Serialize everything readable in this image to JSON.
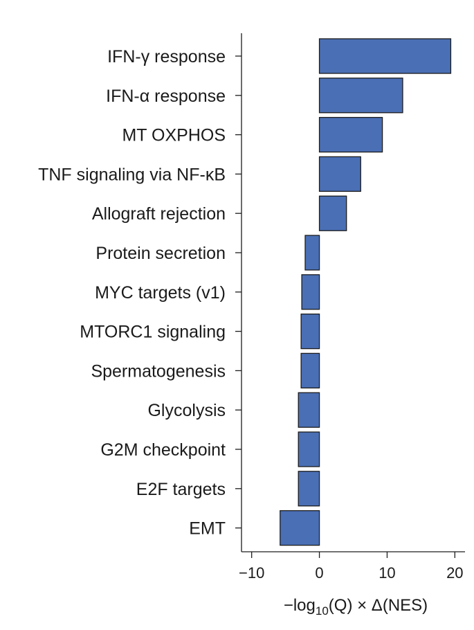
{
  "chart_data": {
    "type": "bar",
    "orientation": "horizontal",
    "categories": [
      "IFN-γ response",
      "IFN-α response",
      "MT OXPHOS",
      "TNF signaling via NF-κB",
      "Allograft rejection",
      "Protein secretion",
      "MYC targets (v1)",
      "MTORC1 signaling",
      "Spermatogenesis",
      "Glycolysis",
      "G2M checkpoint",
      "E2F targets",
      "EMT"
    ],
    "values": [
      19.4,
      12.3,
      9.3,
      6.1,
      4.0,
      -2.1,
      -2.6,
      -2.7,
      -2.7,
      -3.1,
      -3.1,
      -3.1,
      -5.8
    ],
    "xlim": [
      -11.5,
      21.5
    ],
    "xticks": [
      -10,
      0,
      10,
      20
    ],
    "xtick_labels": [
      "−10",
      "0",
      "10",
      "20"
    ],
    "xlabel": {
      "prefix": "−log",
      "subscript": "10",
      "suffix": "(Q) × Δ(NES)"
    },
    "bar_color": "#4a6fb5",
    "bar_edge_color": "#1c1c1c",
    "grid": false
  }
}
